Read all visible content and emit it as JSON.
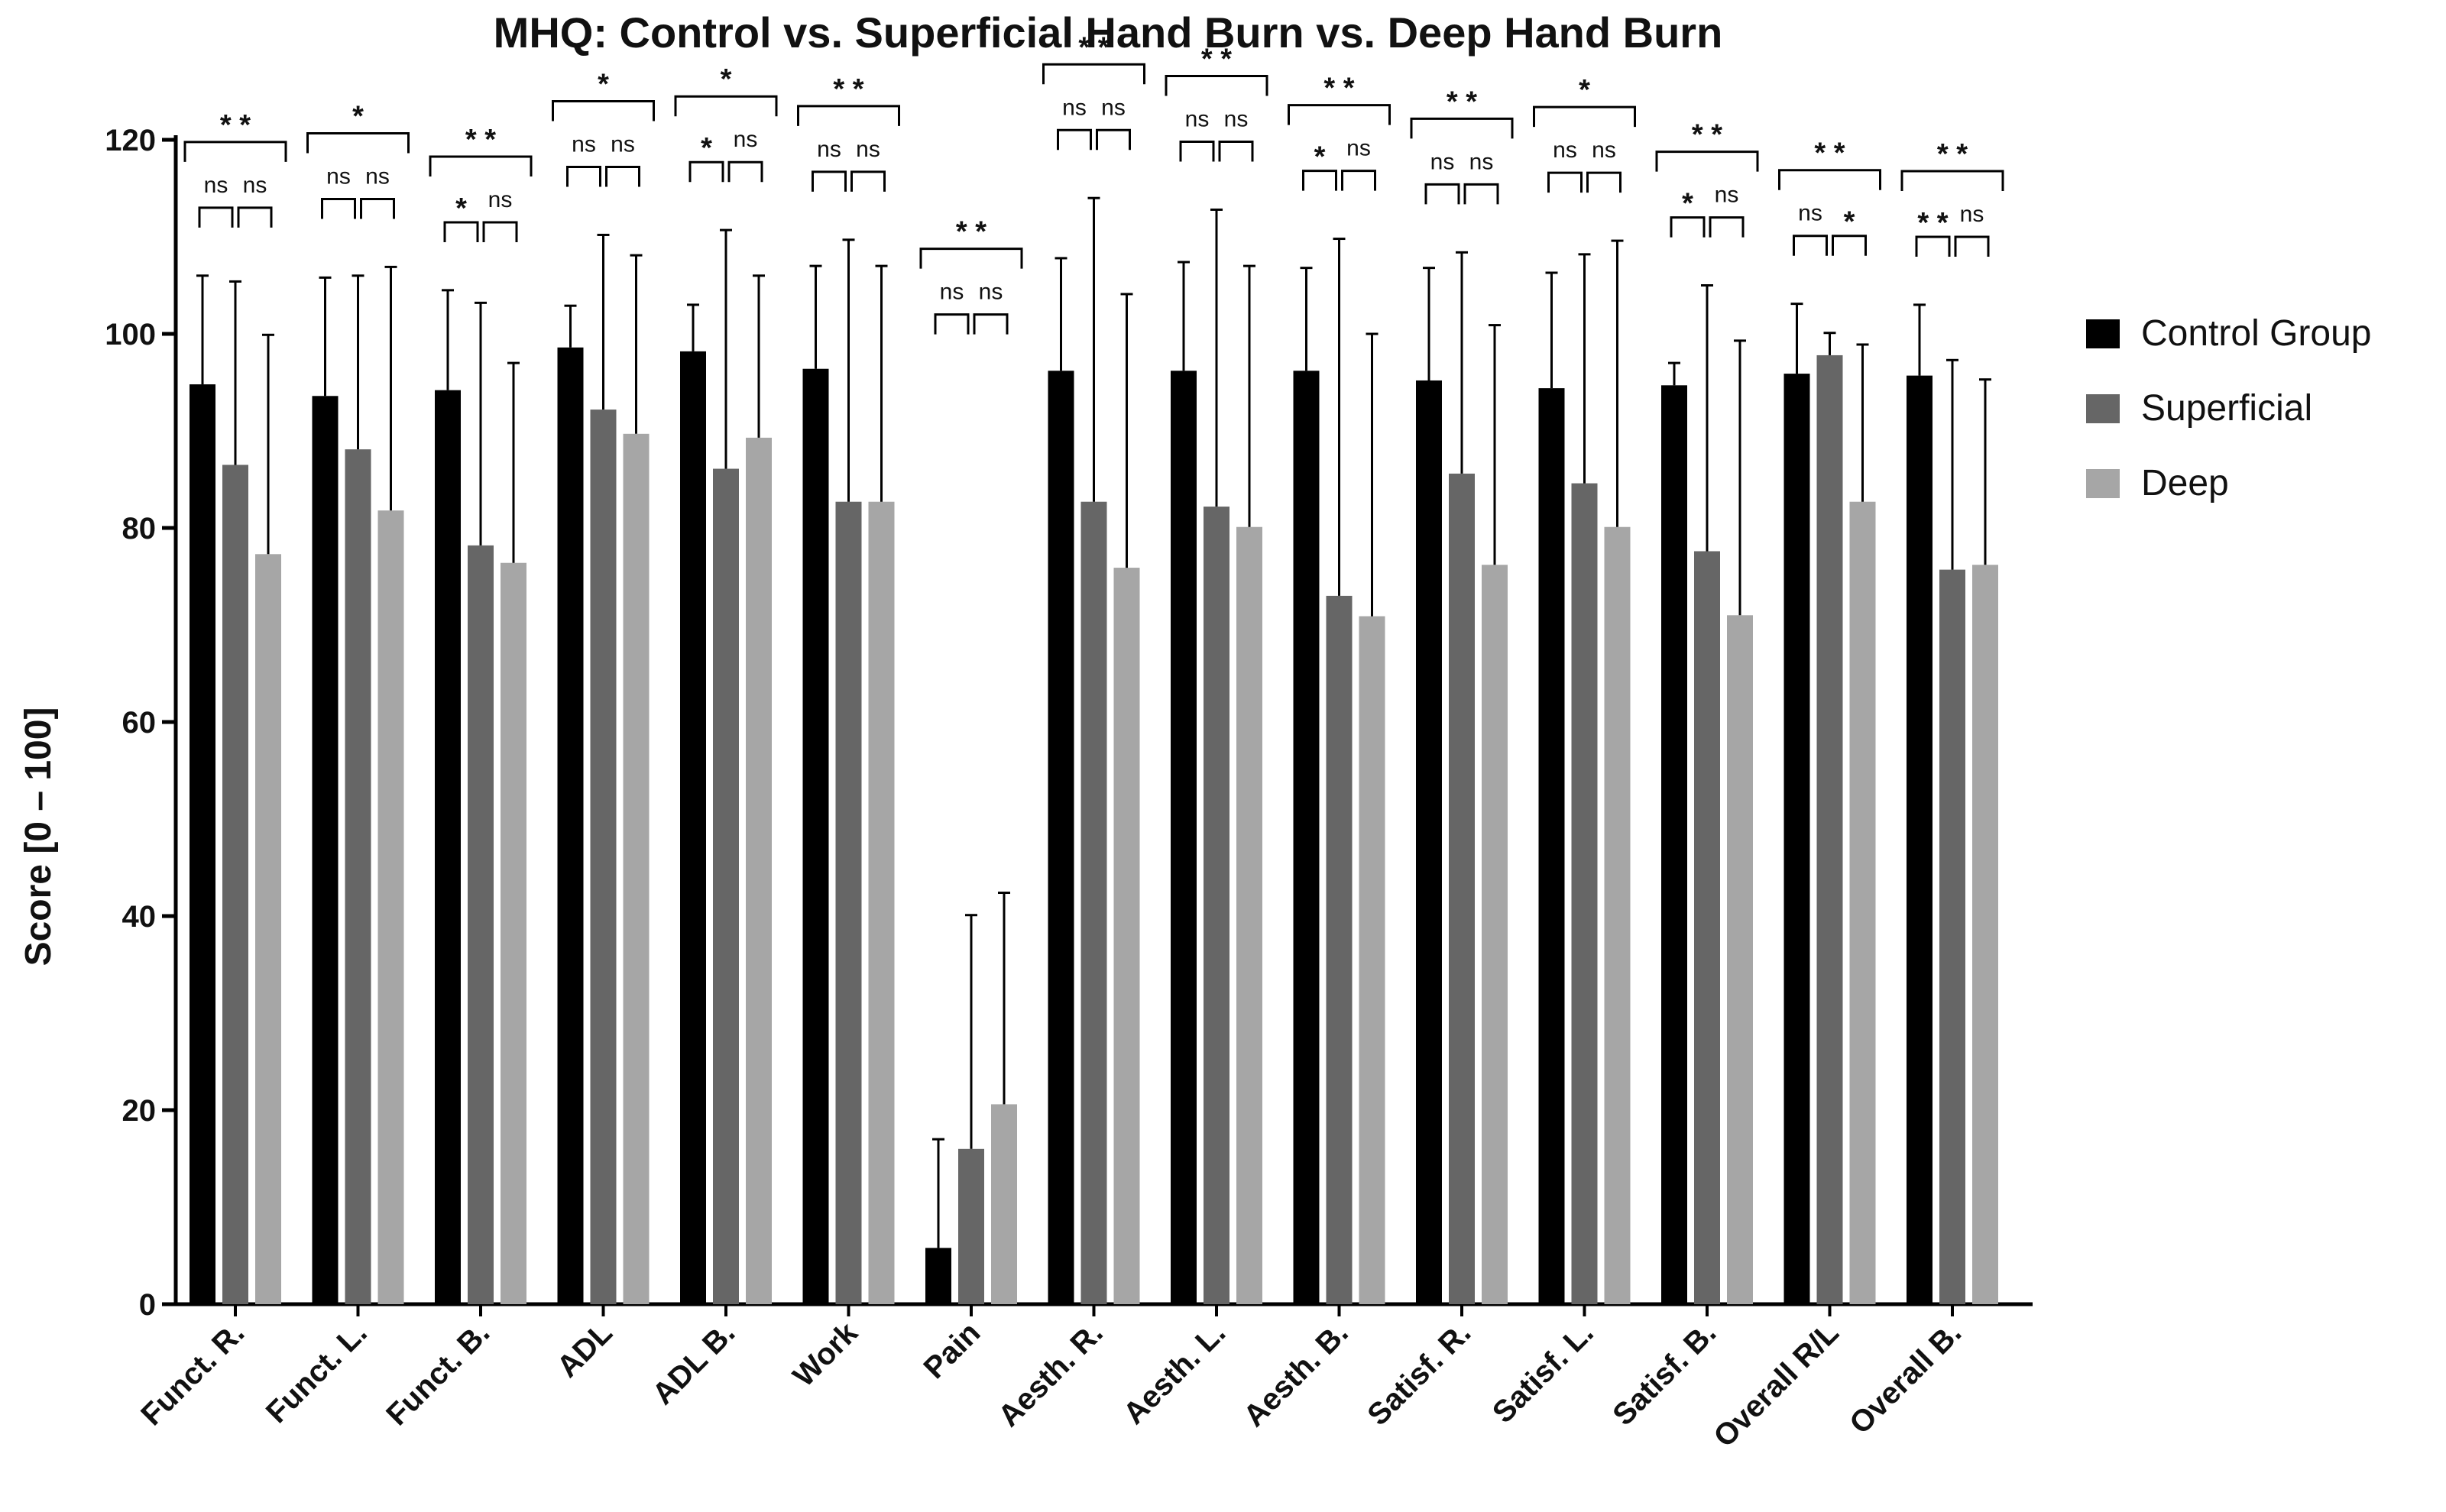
{
  "chart_data": {
    "type": "bar",
    "title": "MHQ: Control vs. Superficial Hand Burn vs. Deep Hand Burn",
    "ylabel": "Score [0 – 100]",
    "xlabel": "",
    "ylim": [
      0,
      120
    ],
    "yticks": [
      0,
      20,
      40,
      60,
      80,
      100,
      120
    ],
    "grid": false,
    "legend_position": "right",
    "categories": [
      "Funct. R.",
      "Funct. L.",
      "Funct. B.",
      "ADL",
      "ADL B.",
      "Work",
      "Pain",
      "Aesth. R.",
      "Aesth. L.",
      "Aesth. B.",
      "Satisf. R.",
      "Satisf. L.",
      "Satisf. B.",
      "Overall R/L",
      "Overall B."
    ],
    "series": [
      {
        "name": "Control Group",
        "color": "#000000",
        "values": [
          94.8,
          93.6,
          94.2,
          98.6,
          98.2,
          96.4,
          5.8,
          96.2,
          96.2,
          96.2,
          95.2,
          94.4,
          94.7,
          95.9,
          95.7
        ],
        "error": [
          11.2,
          12.2,
          10.3,
          4.3,
          4.8,
          10.6,
          11.2,
          11.6,
          11.2,
          10.6,
          11.6,
          11.9,
          2.3,
          7.2,
          7.3
        ]
      },
      {
        "name": "Superficial",
        "color": "#666666",
        "values": [
          86.5,
          88.1,
          78.2,
          92.2,
          86.1,
          82.7,
          16.0,
          82.7,
          82.2,
          73.0,
          85.6,
          84.6,
          77.6,
          97.8,
          75.7
        ],
        "error": [
          18.9,
          17.9,
          25.0,
          18.0,
          24.6,
          27.0,
          24.1,
          31.3,
          30.6,
          36.8,
          22.8,
          23.6,
          27.4,
          2.3,
          21.6
        ]
      },
      {
        "name": "Deep",
        "color": "#a6a6a6",
        "values": [
          77.3,
          81.8,
          76.4,
          89.7,
          89.3,
          82.7,
          20.6,
          75.9,
          80.1,
          70.9,
          76.2,
          80.1,
          71.0,
          82.7,
          76.2
        ],
        "error": [
          22.6,
          25.1,
          20.6,
          18.4,
          16.7,
          24.3,
          21.8,
          28.2,
          26.9,
          29.1,
          24.7,
          29.5,
          28.3,
          16.2,
          19.1
        ]
      }
    ],
    "significance": [
      {
        "overall": "* *",
        "left": "ns",
        "right": "ns"
      },
      {
        "overall": "*",
        "left": "ns",
        "right": "ns"
      },
      {
        "overall": "* *",
        "left": "*",
        "right": "ns"
      },
      {
        "overall": "*",
        "left": "ns",
        "right": "ns"
      },
      {
        "overall": "*",
        "left": "*",
        "right": "ns"
      },
      {
        "overall": "* *",
        "left": "ns",
        "right": "ns"
      },
      {
        "overall": "* *",
        "left": "ns",
        "right": "ns"
      },
      {
        "overall": "* *",
        "left": "ns",
        "right": "ns"
      },
      {
        "overall": "* *",
        "left": "ns",
        "right": "ns"
      },
      {
        "overall": "* *",
        "left": "*",
        "right": "ns"
      },
      {
        "overall": "* *",
        "left": "ns",
        "right": "ns"
      },
      {
        "overall": "*",
        "left": "ns",
        "right": "ns"
      },
      {
        "overall": "* *",
        "left": "*",
        "right": "ns"
      },
      {
        "overall": "* *",
        "left": "ns",
        "right": "*"
      },
      {
        "overall": "* *",
        "left": "* *",
        "right": "ns"
      }
    ]
  }
}
